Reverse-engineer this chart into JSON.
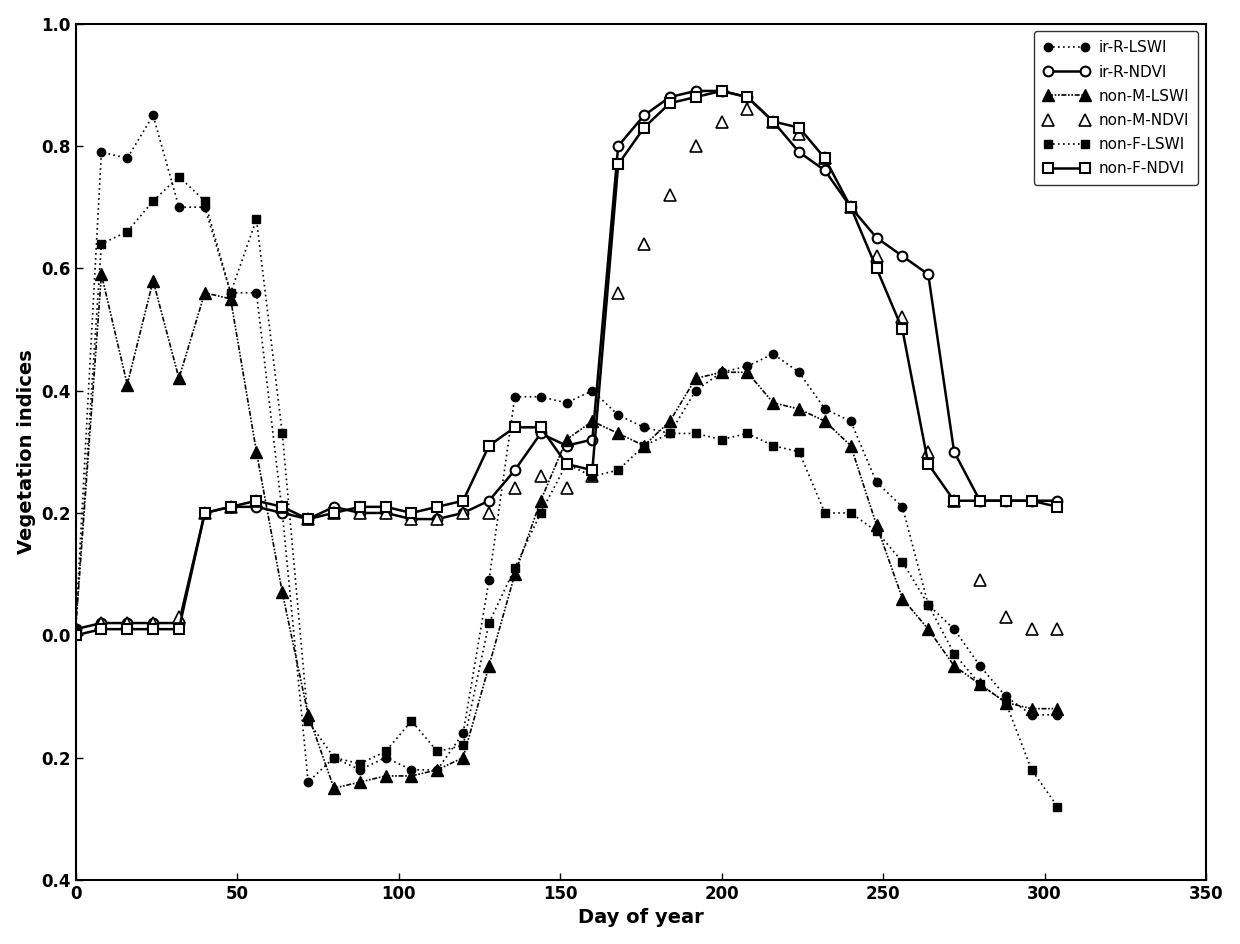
{
  "title": "",
  "xlabel": "Day of year",
  "ylabel": "Vegetation indices",
  "xlim": [
    0,
    350
  ],
  "ylim": [
    -0.4,
    1.0
  ],
  "yticks": [
    1.0,
    0.8,
    0.6,
    0.4,
    0.2,
    0.0,
    -0.2,
    -0.4
  ],
  "ytick_labels": [
    "1.0",
    "0.8",
    "0.6",
    "0.4",
    "0.2",
    "0.0",
    "0.2",
    "0.4"
  ],
  "xticks": [
    0,
    50,
    100,
    150,
    200,
    250,
    300,
    350
  ],
  "ir_R_LSWI_x": [
    0,
    8,
    16,
    24,
    32,
    40,
    48,
    56,
    64,
    72,
    80,
    88,
    96,
    104,
    112,
    120,
    128,
    136,
    144,
    152,
    160,
    168,
    176,
    184,
    192,
    200,
    208,
    216,
    224,
    232,
    240,
    248,
    256,
    264,
    272,
    280,
    288,
    296,
    304
  ],
  "ir_R_LSWI_y": [
    0.01,
    0.79,
    0.78,
    0.85,
    0.7,
    0.7,
    0.56,
    0.56,
    0.2,
    -0.24,
    -0.2,
    -0.22,
    -0.2,
    -0.22,
    -0.22,
    -0.16,
    0.09,
    0.39,
    0.39,
    0.38,
    0.4,
    0.36,
    0.34,
    0.33,
    0.4,
    0.43,
    0.44,
    0.46,
    0.43,
    0.37,
    0.35,
    0.25,
    0.21,
    0.05,
    0.01,
    -0.05,
    -0.1,
    -0.13,
    -0.13
  ],
  "ir_R_NDVI_x": [
    0,
    8,
    16,
    24,
    32,
    40,
    48,
    56,
    64,
    72,
    80,
    88,
    96,
    104,
    112,
    120,
    128,
    136,
    144,
    152,
    160,
    168,
    176,
    184,
    192,
    200,
    208,
    216,
    224,
    232,
    240,
    248,
    256,
    264,
    272,
    280,
    288,
    296,
    304
  ],
  "ir_R_NDVI_y": [
    0.01,
    0.02,
    0.02,
    0.02,
    0.02,
    0.2,
    0.21,
    0.21,
    0.2,
    0.19,
    0.21,
    0.2,
    0.2,
    0.19,
    0.19,
    0.2,
    0.22,
    0.27,
    0.33,
    0.31,
    0.32,
    0.8,
    0.85,
    0.88,
    0.89,
    0.89,
    0.88,
    0.84,
    0.79,
    0.76,
    0.7,
    0.65,
    0.62,
    0.59,
    0.3,
    0.22,
    0.22,
    0.22,
    0.22
  ],
  "non_M_LSWI_x": [
    0,
    8,
    16,
    24,
    32,
    40,
    48,
    56,
    64,
    72,
    80,
    88,
    96,
    104,
    112,
    120,
    128,
    136,
    144,
    152,
    160,
    168,
    176,
    184,
    192,
    200,
    208,
    216,
    224,
    232,
    240,
    248,
    256,
    264,
    272,
    280,
    288,
    296,
    304
  ],
  "non_M_LSWI_y": [
    0.01,
    0.59,
    0.41,
    0.58,
    0.42,
    0.56,
    0.55,
    0.3,
    0.07,
    -0.13,
    -0.25,
    -0.24,
    -0.23,
    -0.23,
    -0.22,
    -0.2,
    -0.05,
    0.1,
    0.22,
    0.32,
    0.35,
    0.33,
    0.31,
    0.35,
    0.42,
    0.43,
    0.43,
    0.38,
    0.37,
    0.35,
    0.31,
    0.18,
    0.06,
    0.01,
    -0.05,
    -0.08,
    -0.11,
    -0.12,
    -0.12
  ],
  "non_M_NDVI_x": [
    0,
    8,
    16,
    24,
    32,
    40,
    48,
    56,
    64,
    72,
    80,
    88,
    96,
    104,
    112,
    120,
    128,
    136,
    144,
    152,
    160,
    168,
    176,
    184,
    192,
    200,
    208,
    216,
    224,
    232,
    240,
    248,
    256,
    264,
    272,
    280,
    288,
    296,
    304
  ],
  "non_M_NDVI_y": [
    0.01,
    0.02,
    0.02,
    0.02,
    0.03,
    0.2,
    0.21,
    0.22,
    0.21,
    0.19,
    0.2,
    0.2,
    0.2,
    0.19,
    0.19,
    0.2,
    0.2,
    0.24,
    0.26,
    0.24,
    0.26,
    0.56,
    0.64,
    0.72,
    0.8,
    0.84,
    0.86,
    0.84,
    0.82,
    0.78,
    0.7,
    0.62,
    0.52,
    0.3,
    0.22,
    0.09,
    0.03,
    0.01,
    0.01
  ],
  "non_F_LSWI_x": [
    0,
    8,
    16,
    24,
    32,
    40,
    48,
    56,
    64,
    72,
    80,
    88,
    96,
    104,
    112,
    120,
    128,
    136,
    144,
    152,
    160,
    168,
    176,
    184,
    192,
    200,
    208,
    216,
    224,
    232,
    240,
    248,
    256,
    264,
    272,
    280,
    288,
    296,
    304
  ],
  "non_F_LSWI_y": [
    0.01,
    0.64,
    0.66,
    0.71,
    0.75,
    0.71,
    0.56,
    0.68,
    0.33,
    -0.14,
    -0.2,
    -0.21,
    -0.19,
    -0.14,
    -0.19,
    -0.18,
    0.02,
    0.11,
    0.2,
    0.28,
    0.26,
    0.27,
    0.31,
    0.33,
    0.33,
    0.32,
    0.33,
    0.31,
    0.3,
    0.2,
    0.2,
    0.17,
    0.12,
    0.05,
    -0.03,
    -0.08,
    -0.11,
    -0.22,
    -0.28
  ],
  "non_F_NDVI_x": [
    0,
    8,
    16,
    24,
    32,
    40,
    48,
    56,
    64,
    72,
    80,
    88,
    96,
    104,
    112,
    120,
    128,
    136,
    144,
    152,
    160,
    168,
    176,
    184,
    192,
    200,
    208,
    216,
    224,
    232,
    240,
    248,
    256,
    264,
    272,
    280,
    288,
    296,
    304
  ],
  "non_F_NDVI_y": [
    0.0,
    0.01,
    0.01,
    0.01,
    0.01,
    0.2,
    0.21,
    0.22,
    0.21,
    0.19,
    0.2,
    0.21,
    0.21,
    0.2,
    0.21,
    0.22,
    0.31,
    0.34,
    0.34,
    0.28,
    0.27,
    0.77,
    0.83,
    0.87,
    0.88,
    0.89,
    0.88,
    0.84,
    0.83,
    0.78,
    0.7,
    0.6,
    0.5,
    0.28,
    0.22,
    0.22,
    0.22,
    0.22,
    0.21
  ],
  "background_color": "#ffffff"
}
